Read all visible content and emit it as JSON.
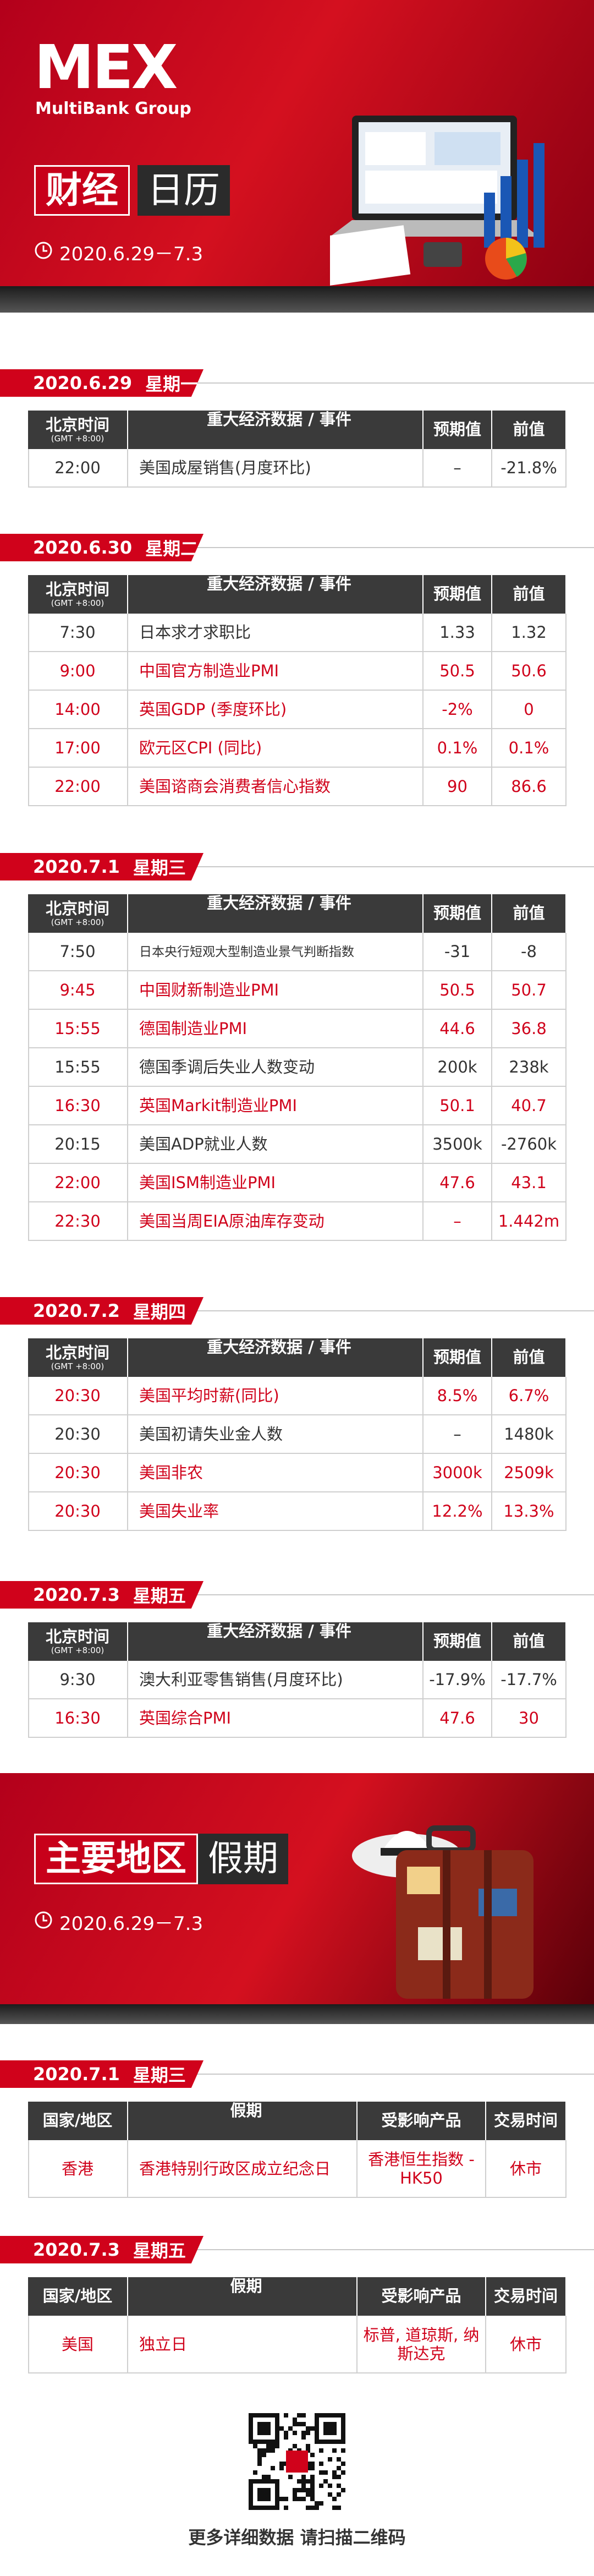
{
  "header": {
    "logo": "MEX",
    "logo_sub": "MultiBank Group",
    "title_a": "财经",
    "title_b": "日历",
    "date_range": "2020.6.29－7.3"
  },
  "calendar": {
    "columns": {
      "time": "北京时间",
      "timezone": "(GMT +8:00)",
      "event": "重大经济数据 / 事件",
      "forecast": "预期值",
      "previous": "前值"
    },
    "days": [
      {
        "date": "2020.6.29",
        "weekday": "星期一",
        "rows": [
          {
            "time": "22:00",
            "event": "美国成屋销售(月度环比)",
            "forecast": "–",
            "previous": "-21.8%",
            "highlight": false
          }
        ]
      },
      {
        "date": "2020.6.30",
        "weekday": "星期二",
        "rows": [
          {
            "time": "7:30",
            "event": "日本求才求职比",
            "forecast": "1.33",
            "previous": "1.32",
            "highlight": false
          },
          {
            "time": "9:00",
            "event": "中国官方制造业PMI",
            "forecast": "50.5",
            "previous": "50.6",
            "highlight": true
          },
          {
            "time": "14:00",
            "event": "英国GDP (季度环比)",
            "forecast": "-2%",
            "previous": "0",
            "highlight": true
          },
          {
            "time": "17:00",
            "event": "欧元区CPI (同比)",
            "forecast": "0.1%",
            "previous": "0.1%",
            "highlight": true
          },
          {
            "time": "22:00",
            "event": "美国谘商会消费者信心指数",
            "forecast": "90",
            "previous": "86.6",
            "highlight": true
          }
        ]
      },
      {
        "date": "2020.7.1",
        "weekday": "星期三",
        "rows": [
          {
            "time": "7:50",
            "event": "日本央行短观大型制造业景气判断指数",
            "forecast": "-31",
            "previous": "-8",
            "highlight": false
          },
          {
            "time": "9:45",
            "event": "中国财新制造业PMI",
            "forecast": "50.5",
            "previous": "50.7",
            "highlight": true
          },
          {
            "time": "15:55",
            "event": "德国制造业PMI",
            "forecast": "44.6",
            "previous": "36.8",
            "highlight": true
          },
          {
            "time": "15:55",
            "event": "德国季调后失业人数变动",
            "forecast": "200k",
            "previous": "238k",
            "highlight": false
          },
          {
            "time": "16:30",
            "event": "英国Markit制造业PMI",
            "forecast": "50.1",
            "previous": "40.7",
            "highlight": true
          },
          {
            "time": "20:15",
            "event": "美国ADP就业人数",
            "forecast": "3500k",
            "previous": "-2760k",
            "highlight": false
          },
          {
            "time": "22:00",
            "event": "美国ISM制造业PMI",
            "forecast": "47.6",
            "previous": "43.1",
            "highlight": true
          },
          {
            "time": "22:30",
            "event": "美国当周EIA原油库存变动",
            "forecast": "–",
            "previous": "1.442m",
            "highlight": true
          }
        ]
      },
      {
        "date": "2020.7.2",
        "weekday": "星期四",
        "rows": [
          {
            "time": "20:30",
            "event": "美国平均时薪(同比)",
            "forecast": "8.5%",
            "previous": "6.7%",
            "highlight": true
          },
          {
            "time": "20:30",
            "event": "美国初请失业金人数",
            "forecast": "–",
            "previous": "1480k",
            "highlight": false
          },
          {
            "time": "20:30",
            "event": "美国非农",
            "forecast": "3000k",
            "previous": "2509k",
            "highlight": true
          },
          {
            "time": "20:30",
            "event": "美国失业率",
            "forecast": "12.2%",
            "previous": "13.3%",
            "highlight": true
          }
        ]
      },
      {
        "date": "2020.7.3",
        "weekday": "星期五",
        "rows": [
          {
            "time": "9:30",
            "event": "澳大利亚零售销售(月度环比)",
            "forecast": "-17.9%",
            "previous": "-17.7%",
            "highlight": false
          },
          {
            "time": "16:30",
            "event": "英国综合PMI",
            "forecast": "47.6",
            "previous": "30",
            "highlight": true
          }
        ]
      }
    ]
  },
  "holidays": {
    "title_a": "主要地区",
    "title_b": "假期",
    "date_range": "2020.6.29－7.3",
    "columns": {
      "country": "国家/地区",
      "holiday": "假期",
      "products": "受影响产品",
      "trading": "交易时间"
    },
    "days": [
      {
        "date": "2020.7.1",
        "weekday": "星期三",
        "rows": [
          {
            "country": "香港",
            "holiday": "香港特别行政区成立纪念日",
            "products": "香港恒生指数 - HK50",
            "trading": "休市",
            "highlight": true
          }
        ]
      },
      {
        "date": "2020.7.3",
        "weekday": "星期五",
        "rows": [
          {
            "country": "美国",
            "holiday": "独立日",
            "products": "标普, 道琼斯, 纳斯达克",
            "trading": "休市",
            "highlight": true
          }
        ]
      }
    ]
  },
  "footer": {
    "cta": "更多详细数据 请扫描二维码"
  }
}
